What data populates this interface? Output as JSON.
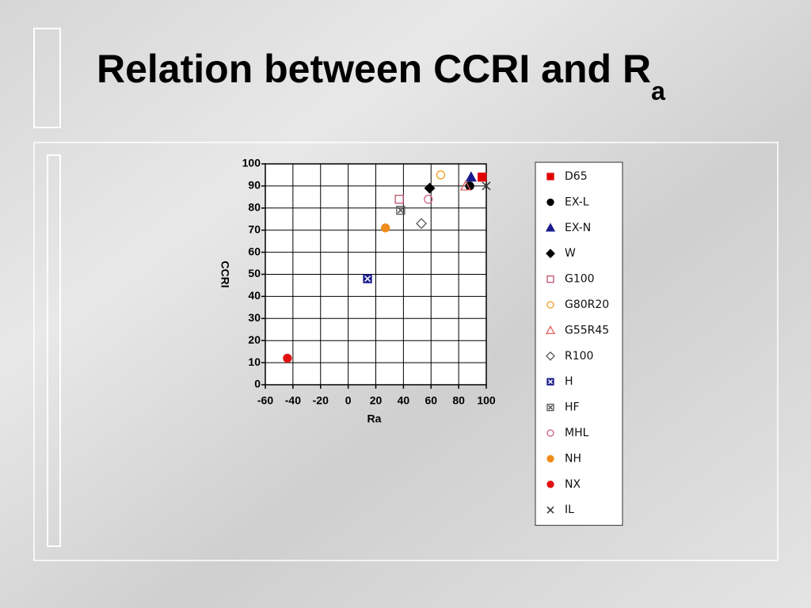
{
  "chart_data": {
    "type": "scatter",
    "title": "Relation between CCRI and R",
    "title_subscript": "a",
    "xlabel": "Ra",
    "ylabel": "CCRI",
    "xlim": [
      -60,
      100
    ],
    "xticks": [
      -60,
      -40,
      -20,
      0,
      20,
      40,
      60,
      80,
      100
    ],
    "ylim": [
      0,
      100
    ],
    "yticks": [
      0,
      10,
      20,
      30,
      40,
      50,
      60,
      70,
      80,
      90,
      100
    ],
    "grid": true,
    "legend": "right",
    "series": [
      {
        "name": "D65",
        "color": "#e00000",
        "marker": "square-filled",
        "x": [
          97
        ],
        "values": [
          94
        ]
      },
      {
        "name": "EX-L",
        "color": "#000000",
        "marker": "circle-filled",
        "x": [
          88
        ],
        "values": [
          90
        ]
      },
      {
        "name": "EX-N",
        "color": "#1a1a8c",
        "marker": "triangle-filled",
        "x": [
          89
        ],
        "values": [
          94
        ]
      },
      {
        "name": "W",
        "color": "#000000",
        "marker": "diamond-filled",
        "x": [
          59
        ],
        "values": [
          89
        ]
      },
      {
        "name": "G100",
        "color": "#c0506a",
        "marker": "square-open",
        "x": [
          37
        ],
        "values": [
          84
        ]
      },
      {
        "name": "G80R20",
        "color": "#f0a020",
        "marker": "circle-open",
        "x": [
          67
        ],
        "values": [
          95
        ]
      },
      {
        "name": "G55R45",
        "color": "#e06060",
        "marker": "triangle-open",
        "x": [
          85
        ],
        "values": [
          90
        ]
      },
      {
        "name": "R100",
        "color": "#555555",
        "marker": "diamond-open",
        "x": [
          53
        ],
        "values": [
          73
        ]
      },
      {
        "name": "H",
        "color": "#1a1a8c",
        "marker": "square-x-filled",
        "x": [
          14
        ],
        "values": [
          48
        ]
      },
      {
        "name": "HF",
        "color": "#555555",
        "marker": "square-x-open",
        "x": [
          38
        ],
        "values": [
          79
        ]
      },
      {
        "name": "MHL",
        "color": "#d06080",
        "marker": "circle-open",
        "x": [
          58
        ],
        "values": [
          84
        ]
      },
      {
        "name": "NH",
        "color": "#f08c1c",
        "marker": "circle-filled",
        "x": [
          27
        ],
        "values": [
          71
        ]
      },
      {
        "name": "NX",
        "color": "#e01010",
        "marker": "circle-filled",
        "x": [
          -44
        ],
        "values": [
          12
        ]
      },
      {
        "name": "IL",
        "color": "#333333",
        "marker": "x",
        "x": [
          100
        ],
        "values": [
          90
        ]
      }
    ]
  }
}
